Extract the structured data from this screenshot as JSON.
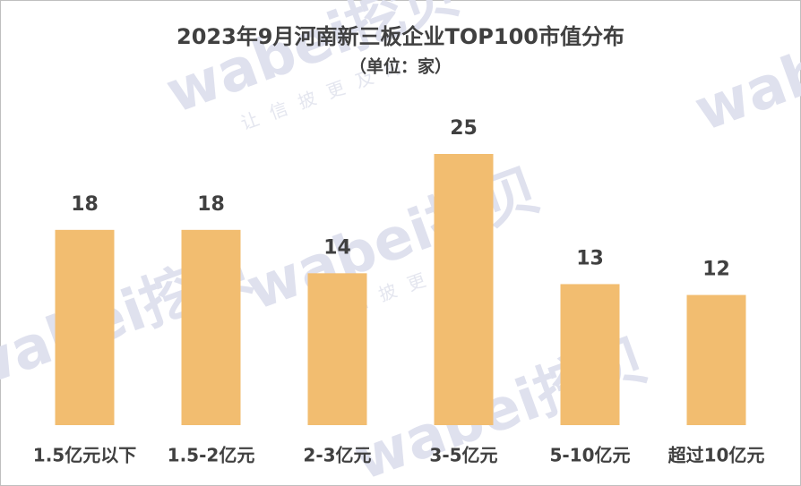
{
  "chart_data": {
    "type": "bar",
    "title": "2023年9月河南新三板企业TOP100市值分布",
    "subtitle": "（单位：家）",
    "categories": [
      "1.5亿元以下",
      "1.5-2亿元",
      "2-3亿元",
      "3-5亿元",
      "5-10亿元",
      "超过10亿元"
    ],
    "values": [
      18,
      18,
      14,
      25,
      13,
      12
    ],
    "color": "#f2bd70"
  },
  "watermark": {
    "brand": "wabei挖贝",
    "slogan": "让信披更及时"
  }
}
